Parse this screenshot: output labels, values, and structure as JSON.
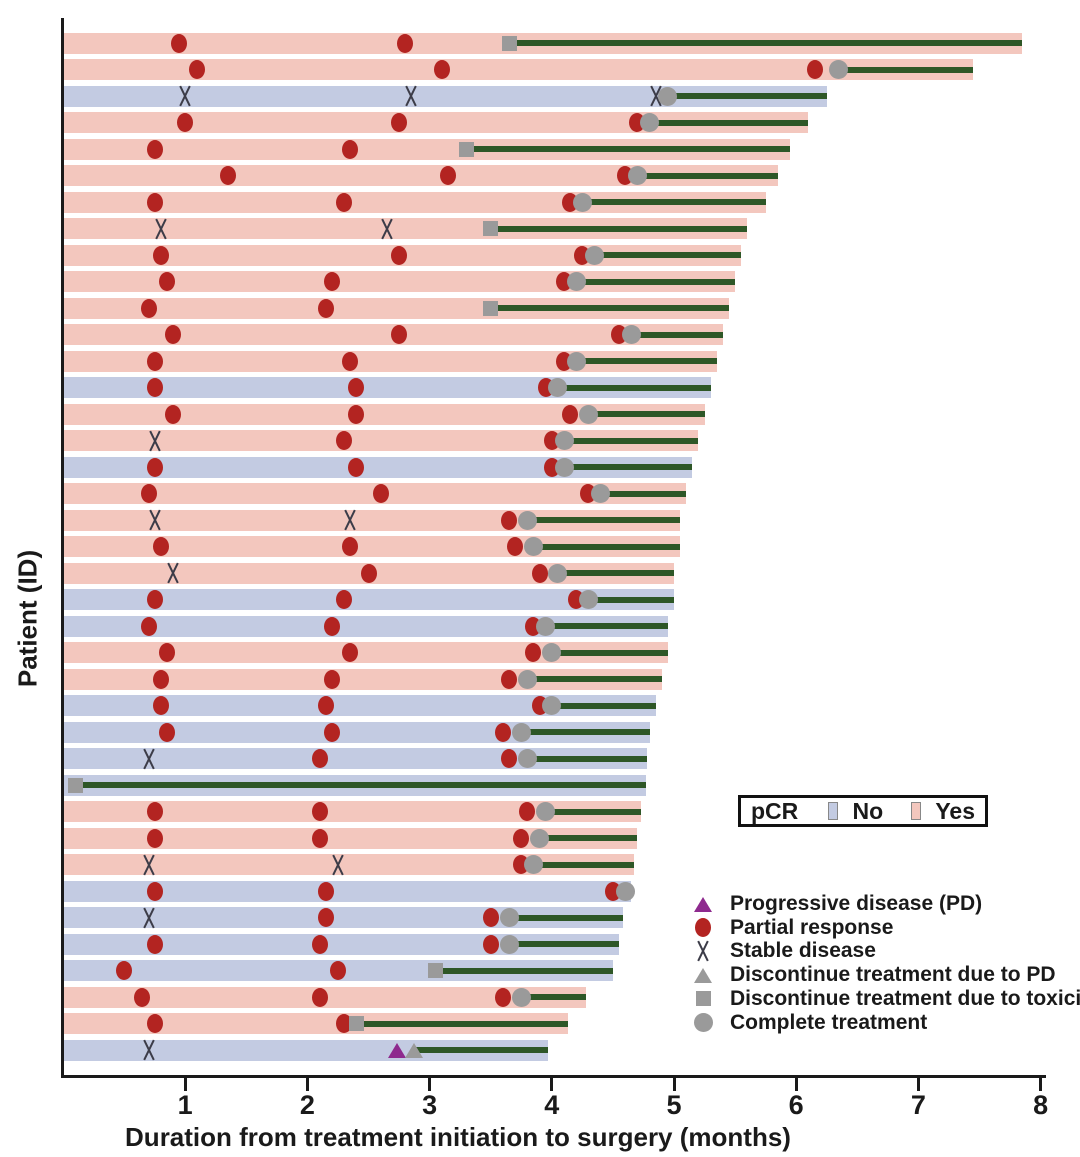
{
  "y_axis": {
    "label": "Patient (ID)"
  },
  "x_axis": {
    "label": "Duration from treatment initiation to surgery (months)",
    "ticks": [
      "1",
      "2",
      "3",
      "4",
      "5",
      "6",
      "7",
      "8"
    ],
    "range": [
      0,
      8
    ]
  },
  "pcr_legend": {
    "title": "pCR",
    "items": [
      {
        "label": "No",
        "color_key": "pcr_no"
      },
      {
        "label": "Yes",
        "color_key": "pcr_yes"
      }
    ]
  },
  "marker_legend": [
    {
      "type": "pd",
      "label": "Progressive disease (PD)"
    },
    {
      "type": "pr",
      "label": "Partial response"
    },
    {
      "type": "sd",
      "label": "Stable disease"
    },
    {
      "type": "disc_pd",
      "label": "Discontinue treatment due to PD"
    },
    {
      "type": "tox",
      "label": "Discontinue treatment due to toxicity"
    },
    {
      "type": "complete",
      "label": "Complete treatment"
    }
  ],
  "colors": {
    "pcr_yes": "#f3c7be",
    "pcr_no": "#c3cbe2",
    "treatment_line": "#2e5727",
    "red": "#b32421",
    "gray": "#9a9a9a",
    "purple": "#8e2a8e",
    "x_marker": "#3c3c48",
    "axis": "#1a1a1a"
  },
  "chart_data": {
    "type": "bar",
    "subtype": "swimmer",
    "xlabel": "Duration from treatment initiation to surgery (months)",
    "ylabel": "Patient (ID)",
    "xlim": [
      0,
      8
    ],
    "event_types": {
      "pr": "Partial response",
      "sd": "Stable disease",
      "pd": "Progressive disease (PD)",
      "disc_pd": "Discontinue treatment due to PD",
      "tox": "Discontinue treatment due to toxicity",
      "complete": "Complete treatment"
    },
    "patients": [
      {
        "pcr": "Yes",
        "events": [
          [
            "pr",
            0.95
          ],
          [
            "pr",
            2.8
          ]
        ],
        "end": [
          "tox",
          3.65
        ],
        "surgery": 7.85
      },
      {
        "pcr": "Yes",
        "events": [
          [
            "pr",
            1.1
          ],
          [
            "pr",
            3.1
          ],
          [
            "pr",
            6.15
          ]
        ],
        "end": [
          "complete",
          6.35
        ],
        "surgery": 7.45
      },
      {
        "pcr": "No",
        "events": [
          [
            "sd",
            1.0
          ],
          [
            "sd",
            2.85
          ],
          [
            "sd",
            4.85
          ]
        ],
        "end": [
          "complete",
          4.95
        ],
        "surgery": 6.25
      },
      {
        "pcr": "Yes",
        "events": [
          [
            "pr",
            1.0
          ],
          [
            "pr",
            2.75
          ],
          [
            "pr",
            4.7
          ]
        ],
        "end": [
          "complete",
          4.8
        ],
        "surgery": 6.1
      },
      {
        "pcr": "Yes",
        "events": [
          [
            "pr",
            0.75
          ],
          [
            "pr",
            2.35
          ]
        ],
        "end": [
          "tox",
          3.3
        ],
        "surgery": 5.95
      },
      {
        "pcr": "Yes",
        "events": [
          [
            "pr",
            1.35
          ],
          [
            "pr",
            3.15
          ],
          [
            "pr",
            4.6
          ]
        ],
        "end": [
          "complete",
          4.7
        ],
        "surgery": 5.85
      },
      {
        "pcr": "Yes",
        "events": [
          [
            "pr",
            0.75
          ],
          [
            "pr",
            2.3
          ],
          [
            "pr",
            4.15
          ]
        ],
        "end": [
          "complete",
          4.25
        ],
        "surgery": 5.75
      },
      {
        "pcr": "Yes",
        "events": [
          [
            "sd",
            0.8
          ],
          [
            "sd",
            2.65
          ]
        ],
        "end": [
          "tox",
          3.5
        ],
        "surgery": 5.6
      },
      {
        "pcr": "Yes",
        "events": [
          [
            "pr",
            0.8
          ],
          [
            "pr",
            2.75
          ],
          [
            "pr",
            4.25
          ]
        ],
        "end": [
          "complete",
          4.35
        ],
        "surgery": 5.55
      },
      {
        "pcr": "Yes",
        "events": [
          [
            "pr",
            0.85
          ],
          [
            "pr",
            2.2
          ],
          [
            "pr",
            4.1
          ]
        ],
        "end": [
          "complete",
          4.2
        ],
        "surgery": 5.5
      },
      {
        "pcr": "Yes",
        "events": [
          [
            "pr",
            0.7
          ],
          [
            "pr",
            2.15
          ]
        ],
        "end": [
          "tox",
          3.5
        ],
        "surgery": 5.45
      },
      {
        "pcr": "Yes",
        "events": [
          [
            "pr",
            0.9
          ],
          [
            "pr",
            2.75
          ],
          [
            "pr",
            4.55
          ]
        ],
        "end": [
          "complete",
          4.65
        ],
        "surgery": 5.4
      },
      {
        "pcr": "Yes",
        "events": [
          [
            "pr",
            0.75
          ],
          [
            "pr",
            2.35
          ],
          [
            "pr",
            4.1
          ]
        ],
        "end": [
          "complete",
          4.2
        ],
        "surgery": 5.35
      },
      {
        "pcr": "No",
        "events": [
          [
            "pr",
            0.75
          ],
          [
            "pr",
            2.4
          ],
          [
            "pr",
            3.95
          ]
        ],
        "end": [
          "complete",
          4.05
        ],
        "surgery": 5.3
      },
      {
        "pcr": "Yes",
        "events": [
          [
            "pr",
            0.9
          ],
          [
            "pr",
            2.4
          ],
          [
            "pr",
            4.15
          ]
        ],
        "end": [
          "complete",
          4.3
        ],
        "surgery": 5.25
      },
      {
        "pcr": "Yes",
        "events": [
          [
            "sd",
            0.75
          ],
          [
            "pr",
            2.3
          ],
          [
            "pr",
            4.0
          ]
        ],
        "end": [
          "complete",
          4.1
        ],
        "surgery": 5.2
      },
      {
        "pcr": "No",
        "events": [
          [
            "pr",
            0.75
          ],
          [
            "pr",
            2.4
          ],
          [
            "pr",
            4.0
          ]
        ],
        "end": [
          "complete",
          4.1
        ],
        "surgery": 5.15
      },
      {
        "pcr": "Yes",
        "events": [
          [
            "pr",
            0.7
          ],
          [
            "pr",
            2.6
          ],
          [
            "pr",
            4.3
          ]
        ],
        "end": [
          "complete",
          4.4
        ],
        "surgery": 5.1
      },
      {
        "pcr": "Yes",
        "events": [
          [
            "sd",
            0.75
          ],
          [
            "sd",
            2.35
          ],
          [
            "pr",
            3.65
          ]
        ],
        "end": [
          "complete",
          3.8
        ],
        "surgery": 5.05
      },
      {
        "pcr": "Yes",
        "events": [
          [
            "pr",
            0.8
          ],
          [
            "pr",
            2.35
          ],
          [
            "pr",
            3.7
          ]
        ],
        "end": [
          "complete",
          3.85
        ],
        "surgery": 5.05
      },
      {
        "pcr": "Yes",
        "events": [
          [
            "sd",
            0.9
          ],
          [
            "pr",
            2.5
          ],
          [
            "pr",
            3.9
          ]
        ],
        "end": [
          "complete",
          4.05
        ],
        "surgery": 5.0
      },
      {
        "pcr": "No",
        "events": [
          [
            "pr",
            0.75
          ],
          [
            "pr",
            2.3
          ],
          [
            "pr",
            4.2
          ]
        ],
        "end": [
          "complete",
          4.3
        ],
        "surgery": 5.0
      },
      {
        "pcr": "No",
        "events": [
          [
            "pr",
            0.7
          ],
          [
            "pr",
            2.2
          ],
          [
            "pr",
            3.85
          ]
        ],
        "end": [
          "complete",
          3.95
        ],
        "surgery": 4.95
      },
      {
        "pcr": "Yes",
        "events": [
          [
            "pr",
            0.85
          ],
          [
            "pr",
            2.35
          ],
          [
            "pr",
            3.85
          ]
        ],
        "end": [
          "complete",
          4.0
        ],
        "surgery": 4.95
      },
      {
        "pcr": "Yes",
        "events": [
          [
            "pr",
            0.8
          ],
          [
            "pr",
            2.2
          ],
          [
            "pr",
            3.65
          ]
        ],
        "end": [
          "complete",
          3.8
        ],
        "surgery": 4.9
      },
      {
        "pcr": "No",
        "events": [
          [
            "pr",
            0.8
          ],
          [
            "pr",
            2.15
          ],
          [
            "pr",
            3.9
          ]
        ],
        "end": [
          "complete",
          4.0
        ],
        "surgery": 4.85
      },
      {
        "pcr": "No",
        "events": [
          [
            "pr",
            0.85
          ],
          [
            "pr",
            2.2
          ],
          [
            "pr",
            3.6
          ]
        ],
        "end": [
          "complete",
          3.75
        ],
        "surgery": 4.8
      },
      {
        "pcr": "No",
        "events": [
          [
            "sd",
            0.7
          ],
          [
            "pr",
            2.1
          ],
          [
            "pr",
            3.65
          ]
        ],
        "end": [
          "complete",
          3.8
        ],
        "surgery": 4.78
      },
      {
        "pcr": "No",
        "events": [],
        "end": [
          "tox",
          0.1
        ],
        "surgery": 4.77
      },
      {
        "pcr": "Yes",
        "events": [
          [
            "pr",
            0.75
          ],
          [
            "pr",
            2.1
          ],
          [
            "pr",
            3.8
          ]
        ],
        "end": [
          "complete",
          3.95
        ],
        "surgery": 4.73
      },
      {
        "pcr": "Yes",
        "events": [
          [
            "pr",
            0.75
          ],
          [
            "pr",
            2.1
          ],
          [
            "pr",
            3.75
          ]
        ],
        "end": [
          "complete",
          3.9
        ],
        "surgery": 4.7
      },
      {
        "pcr": "Yes",
        "events": [
          [
            "sd",
            0.7
          ],
          [
            "sd",
            2.25
          ],
          [
            "pr",
            3.75
          ]
        ],
        "end": [
          "complete",
          3.85
        ],
        "surgery": 4.67
      },
      {
        "pcr": "No",
        "events": [
          [
            "pr",
            0.75
          ],
          [
            "pr",
            2.15
          ],
          [
            "pr",
            4.5
          ]
        ],
        "end": [
          "complete",
          4.6
        ],
        "surgery": 4.65
      },
      {
        "pcr": "No",
        "events": [
          [
            "sd",
            0.7
          ],
          [
            "pr",
            2.15
          ],
          [
            "pr",
            3.5
          ]
        ],
        "end": [
          "complete",
          3.65
        ],
        "surgery": 4.58
      },
      {
        "pcr": "No",
        "events": [
          [
            "pr",
            0.75
          ],
          [
            "pr",
            2.1
          ],
          [
            "pr",
            3.5
          ]
        ],
        "end": [
          "complete",
          3.65
        ],
        "surgery": 4.55
      },
      {
        "pcr": "No",
        "events": [
          [
            "pr",
            0.5
          ],
          [
            "pr",
            2.25
          ]
        ],
        "end": [
          "tox",
          3.05
        ],
        "surgery": 4.5
      },
      {
        "pcr": "Yes",
        "events": [
          [
            "pr",
            0.65
          ],
          [
            "pr",
            2.1
          ],
          [
            "pr",
            3.6
          ]
        ],
        "end": [
          "complete",
          3.75
        ],
        "surgery": 4.28
      },
      {
        "pcr": "Yes",
        "events": [
          [
            "pr",
            0.75
          ],
          [
            "pr",
            2.3
          ]
        ],
        "end": [
          "tox",
          2.4
        ],
        "surgery": 4.13
      },
      {
        "pcr": "No",
        "events": [
          [
            "sd",
            0.7
          ],
          [
            "pd",
            2.73
          ]
        ],
        "end": [
          "disc_pd",
          2.87
        ],
        "surgery": 3.97
      }
    ]
  }
}
